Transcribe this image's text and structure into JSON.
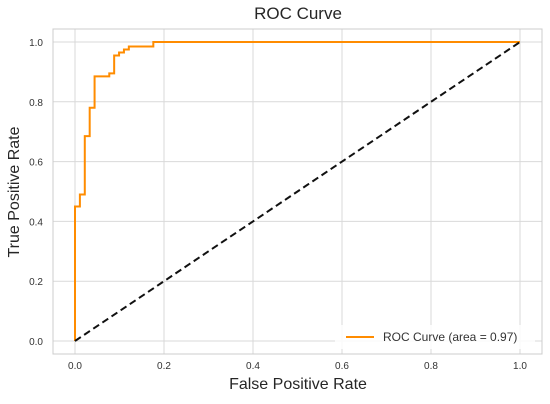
{
  "chart_data": {
    "type": "line",
    "title": "ROC Curve",
    "xlabel": "False Positive Rate",
    "ylabel": "True Positive Rate",
    "xlim": [
      0.0,
      1.0
    ],
    "ylim": [
      0.0,
      1.0
    ],
    "xticks": [
      "0.0",
      "0.2",
      "0.4",
      "0.6",
      "0.8",
      "1.0"
    ],
    "yticks": [
      "0.0",
      "0.2",
      "0.4",
      "0.6",
      "0.8",
      "1.0"
    ],
    "grid": true,
    "legend_position": "lower-right",
    "series": [
      {
        "name": "ROC Curve (area = 0.97)",
        "color": "#ff8c00",
        "style": "solid",
        "x": [
          0.0,
          0.0,
          0.0,
          0.0,
          0.011,
          0.011,
          0.022,
          0.022,
          0.033,
          0.033,
          0.044,
          0.044,
          0.077,
          0.077,
          0.088,
          0.088,
          0.099,
          0.099,
          0.11,
          0.11,
          0.121,
          0.121,
          0.132,
          0.132,
          0.176,
          0.176,
          1.0
        ],
        "y": [
          0.0,
          0.35,
          0.45,
          0.45,
          0.45,
          0.49,
          0.49,
          0.685,
          0.685,
          0.78,
          0.78,
          0.885,
          0.885,
          0.895,
          0.895,
          0.955,
          0.955,
          0.965,
          0.965,
          0.975,
          0.975,
          0.985,
          0.985,
          0.985,
          0.985,
          1.0,
          1.0
        ]
      },
      {
        "color": "#111111",
        "style": "dashed",
        "x": [
          0.0,
          1.0
        ],
        "y": [
          0.0,
          1.0
        ]
      }
    ]
  }
}
